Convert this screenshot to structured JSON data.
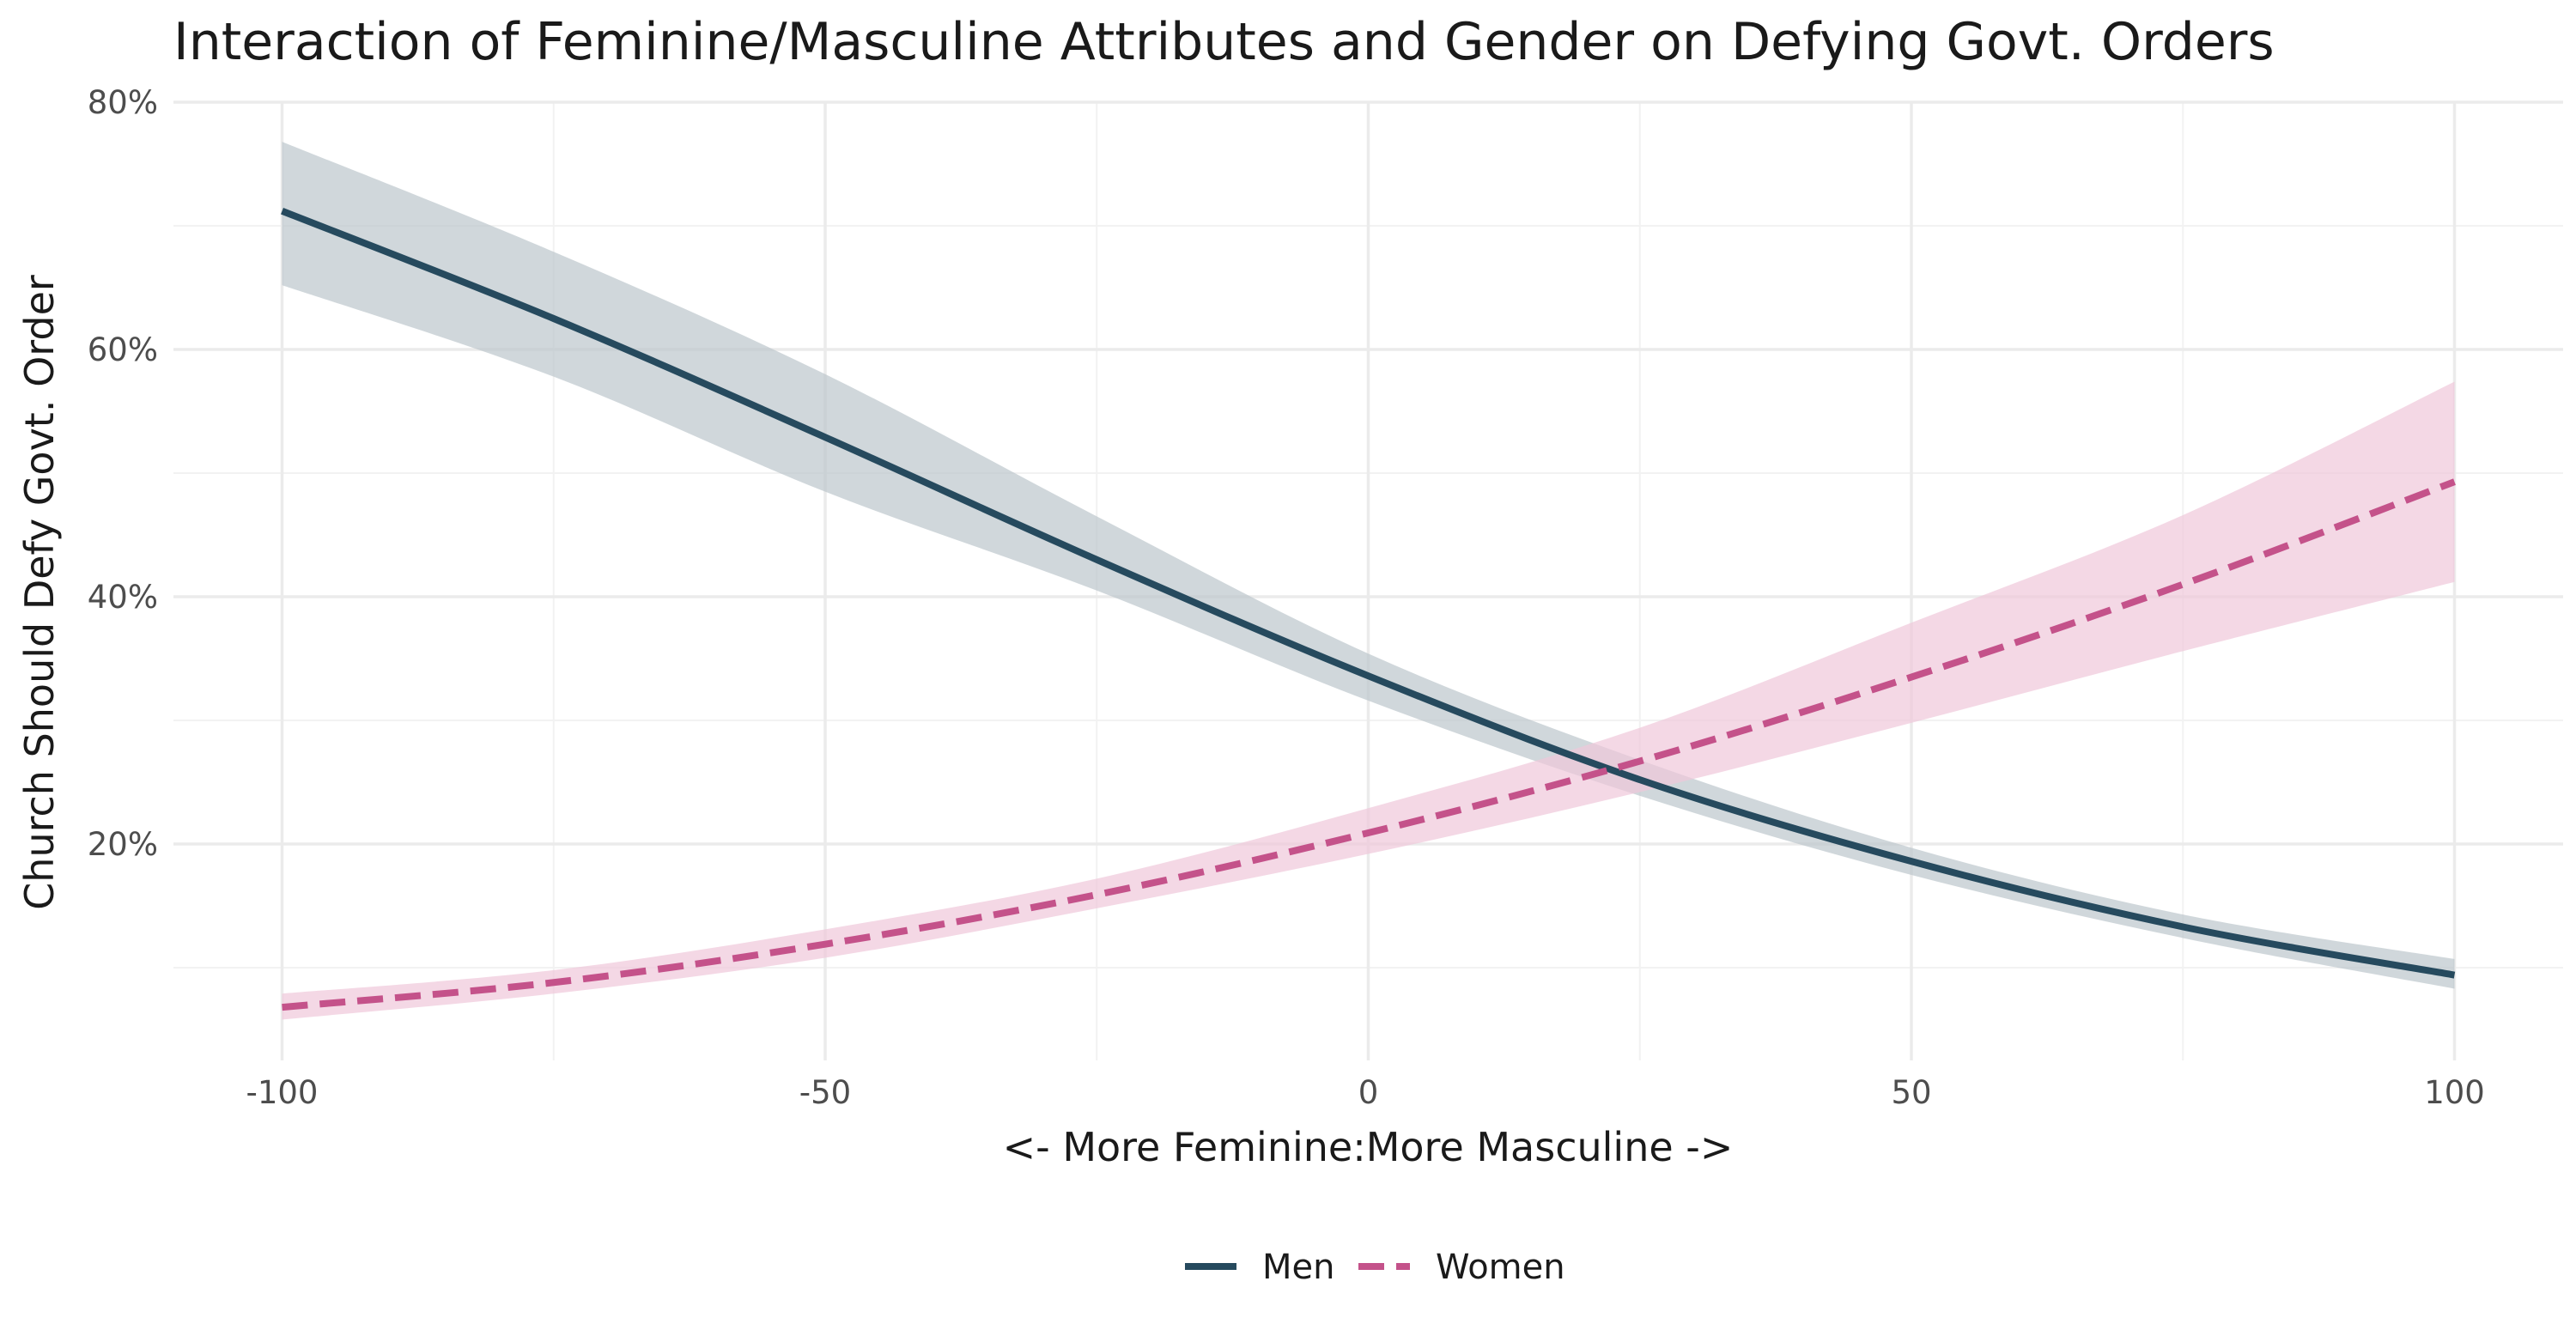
{
  "chart_data": {
    "type": "line",
    "title": "Interaction of Feminine/Masculine Attributes and Gender on Defying Govt. Orders",
    "xlabel": "<- More Feminine:More Masculine ->",
    "ylabel": "Church Should Defy Govt. Order",
    "xlim": [
      -110,
      110
    ],
    "ylim": [
      2.5,
      80
    ],
    "x_ticks": [
      -100,
      -50,
      0,
      50,
      100
    ],
    "x_tick_labels": [
      "-100",
      "-50",
      "0",
      "50",
      "100"
    ],
    "y_ticks": [
      20,
      40,
      60,
      80
    ],
    "y_tick_labels": [
      "20%",
      "40%",
      "60%",
      "80%"
    ],
    "grid": true,
    "legend_position": "bottom",
    "x": [
      -100,
      -75,
      -50,
      -25,
      0,
      25,
      50,
      75,
      100
    ],
    "series": [
      {
        "name": "Men",
        "color": "#264a5e",
        "band_color": "#bcc6cc",
        "line_style": "solid",
        "values": [
          71.2,
          62.5,
          52.9,
          43.0,
          33.6,
          25.2,
          18.6,
          13.3,
          9.4
        ],
        "lower": [
          65.2,
          57.8,
          48.5,
          40.5,
          31.6,
          23.9,
          17.5,
          12.4,
          8.3
        ],
        "upper": [
          76.8,
          67.9,
          58.0,
          46.5,
          35.4,
          26.8,
          19.7,
          14.3,
          10.7
        ]
      },
      {
        "name": "Women",
        "color": "#c4528a",
        "band_color": "#f0c7da",
        "line_style": "dashed",
        "values": [
          6.8,
          8.8,
          11.9,
          15.9,
          20.9,
          26.7,
          33.5,
          41.0,
          49.3
        ],
        "lower": [
          5.8,
          7.9,
          10.8,
          14.8,
          19.2,
          24.2,
          29.8,
          35.6,
          41.2
        ],
        "upper": [
          7.9,
          9.8,
          13.1,
          17.2,
          22.9,
          29.4,
          37.9,
          46.6,
          57.4
        ]
      }
    ]
  }
}
